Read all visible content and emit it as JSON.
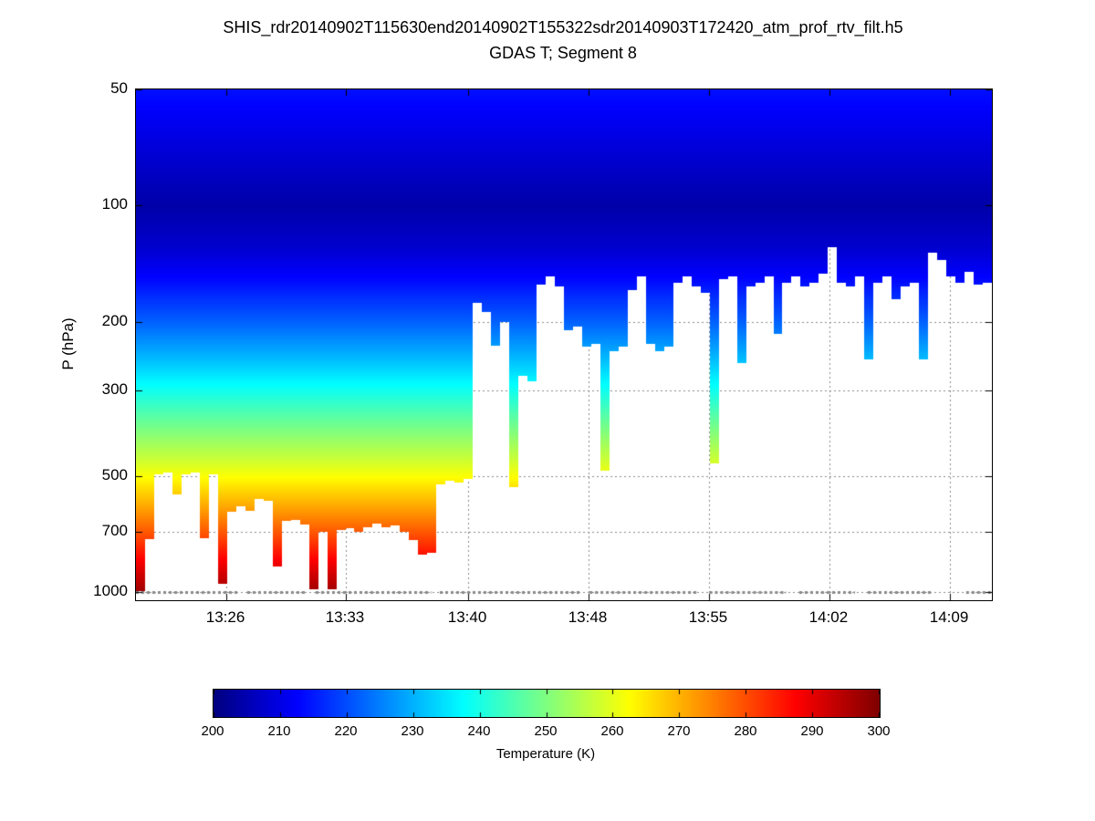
{
  "chart_data": {
    "type": "heatmap",
    "title": "SHIS_rdr20140902T115630end20140902T155322sdr20140903T172420_atm_prof_rtv_filt.h5",
    "subtitle": "GDAS T; Segment 8",
    "ylabel": "P (hPa)",
    "xlabel": "",
    "grid": true,
    "y_axis": {
      "scale": "log",
      "range_hpa": [
        50,
        1050
      ],
      "ticks": [
        50,
        100,
        200,
        300,
        500,
        700,
        1000
      ]
    },
    "x_axis": {
      "ticks": [
        {
          "label": "13:26",
          "f": 0.1056
        },
        {
          "label": "13:33",
          "f": 0.2452
        },
        {
          "label": "13:40",
          "f": 0.3881
        },
        {
          "label": "13:48",
          "f": 0.5288
        },
        {
          "label": "13:55",
          "f": 0.6695
        },
        {
          "label": "14:02",
          "f": 0.8102
        },
        {
          "label": "14:09",
          "f": 0.951
        }
      ]
    },
    "colorbar": {
      "label": "Temperature (K)",
      "range_k": [
        200,
        300
      ],
      "ticks": [
        200,
        210,
        220,
        230,
        240,
        250,
        260,
        270,
        280,
        290,
        300
      ],
      "colormap": "jet"
    },
    "temperature_profile": {
      "pressure_hpa": [
        50,
        70,
        100,
        130,
        150,
        200,
        250,
        300,
        350,
        400,
        450,
        500,
        600,
        700,
        800,
        900,
        1000,
        1050
      ],
      "temperature_k": [
        214,
        209,
        204,
        208,
        212,
        222,
        231,
        239,
        246,
        252,
        257,
        262,
        271,
        279,
        286,
        292,
        297,
        299
      ]
    },
    "columns_cutoff_hpa": [
      995,
      730,
      495,
      490,
      560,
      495,
      490,
      725,
      495,
      950,
      620,
      600,
      615,
      575,
      580,
      860,
      655,
      650,
      670,
      985,
      700,
      985,
      690,
      685,
      700,
      680,
      665,
      680,
      672,
      700,
      735,
      800,
      790,
      525,
      515,
      522,
      510,
      178,
      188,
      230,
      200,
      535,
      275,
      285,
      160,
      152,
      162,
      210,
      205,
      232,
      228,
      485,
      238,
      232,
      165,
      152,
      228,
      238,
      232,
      158,
      152,
      162,
      168,
      465,
      155,
      152,
      255,
      162,
      158,
      152,
      215,
      158,
      152,
      162,
      158,
      150,
      128,
      158,
      162,
      152,
      250,
      158,
      152,
      175,
      162,
      158,
      250,
      132,
      138,
      152,
      158,
      148,
      160,
      158
    ],
    "surface_pressure_line": {
      "pressure_hpa": 1000,
      "color": "#8a8a8a",
      "segments_fraction": [
        [
          0.0,
          0.12
        ],
        [
          0.13,
          0.2
        ],
        [
          0.21,
          0.345
        ],
        [
          0.355,
          0.52
        ],
        [
          0.53,
          0.655
        ],
        [
          0.67,
          0.76
        ],
        [
          0.775,
          0.84
        ],
        [
          0.855,
          0.93
        ],
        [
          0.97,
          1.0
        ]
      ]
    },
    "grid_color": "#888888"
  }
}
